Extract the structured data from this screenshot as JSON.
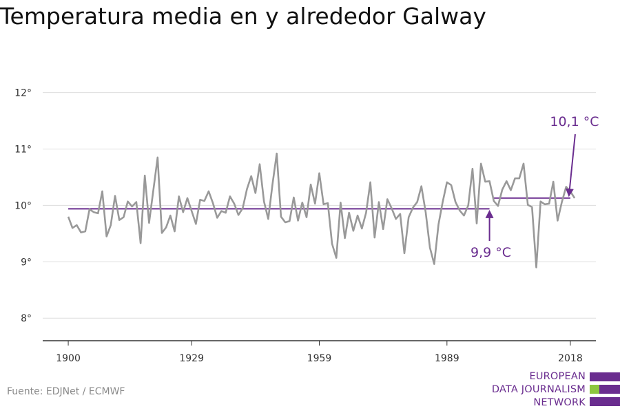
{
  "title": "Temperatura media en y alrededor Galway",
  "source": "Fuente: EDJNet / ECMWF",
  "logo": {
    "lines": [
      "EUROPEAN",
      "DATA JOURNALISM",
      "NETWORK"
    ]
  },
  "colors": {
    "series": "#999999",
    "average": "#6a2d8f",
    "grid": "#dddddd",
    "axis": "#333333",
    "logo_purple": "#6a2d8f",
    "logo_green": "#8dc63f"
  },
  "chart_data": {
    "type": "line",
    "title": "Temperatura media en y alrededor Galway",
    "xlabel": "",
    "ylabel": "",
    "xlim": [
      1894,
      2024
    ],
    "ylim": [
      7.6,
      12.3
    ],
    "x_ticks": [
      1900,
      1929,
      1959,
      1989,
      2018
    ],
    "x_tick_labels": [
      "1900",
      "1929",
      "1959",
      "1989",
      "2018"
    ],
    "y_ticks": [
      8,
      9,
      10,
      11,
      12
    ],
    "y_tick_labels": [
      "8°",
      "9°",
      "10°",
      "11°",
      "12°"
    ],
    "grid": "horizontal",
    "series": [
      {
        "x": [
          1900,
          1901,
          1902,
          1903,
          1904,
          1905,
          1906,
          1907,
          1908,
          1909,
          1910,
          1911,
          1912,
          1913,
          1914,
          1915,
          1916,
          1917,
          1918,
          1919,
          1920,
          1921,
          1922,
          1923,
          1924,
          1925,
          1926,
          1927,
          1928,
          1929,
          1930,
          1931,
          1932,
          1933,
          1934,
          1935,
          1936,
          1937,
          1938,
          1939,
          1940,
          1941,
          1942,
          1943,
          1944,
          1945,
          1946,
          1947,
          1948,
          1949,
          1950,
          1951,
          1952,
          1953,
          1954,
          1955,
          1956,
          1957,
          1958,
          1959,
          1960,
          1961,
          1962,
          1963,
          1964,
          1965,
          1966,
          1967,
          1968,
          1969,
          1970,
          1971,
          1972,
          1973,
          1974,
          1975,
          1976,
          1977,
          1978,
          1979,
          1980,
          1981,
          1982,
          1983,
          1984,
          1985,
          1986,
          1987,
          1988,
          1989,
          1990,
          1991,
          1992,
          1993,
          1994,
          1995,
          1996,
          1997,
          1998,
          1999,
          2000,
          2001,
          2002,
          2003,
          2004,
          2005,
          2006,
          2007,
          2008,
          2009,
          2010,
          2011,
          2012,
          2013,
          2014,
          2015,
          2016,
          2017,
          2018,
          2019
        ],
        "values": [
          9.8,
          9.6,
          9.65,
          9.52,
          9.54,
          9.93,
          9.88,
          9.86,
          10.25,
          9.45,
          9.65,
          10.17,
          9.74,
          9.79,
          10.07,
          9.98,
          10.06,
          9.33,
          10.53,
          9.69,
          10.27,
          10.85,
          9.51,
          9.61,
          9.82,
          9.54,
          10.16,
          9.88,
          10.13,
          9.9,
          9.67,
          10.1,
          10.08,
          10.25,
          10.04,
          9.78,
          9.9,
          9.87,
          10.16,
          10.03,
          9.83,
          9.95,
          10.29,
          10.52,
          10.22,
          10.73,
          10.07,
          9.76,
          10.38,
          10.92,
          9.8,
          9.7,
          9.72,
          10.14,
          9.73,
          10.05,
          9.79,
          10.37,
          10.03,
          10.57,
          10.02,
          10.04,
          9.32,
          9.07,
          10.05,
          9.42,
          9.87,
          9.55,
          9.82,
          9.59,
          9.87,
          10.41,
          9.43,
          10.06,
          9.58,
          10.11,
          9.95,
          9.76,
          9.85,
          9.15,
          9.79,
          9.96,
          10.06,
          10.34,
          9.88,
          9.25,
          8.96,
          9.66,
          10.06,
          10.41,
          10.36,
          10.06,
          9.91,
          9.82,
          10.0,
          10.65,
          9.68,
          10.74,
          10.42,
          10.43,
          10.08,
          9.99,
          10.28,
          10.43,
          10.27,
          10.48,
          10.48,
          10.74,
          10.01,
          9.97,
          8.9,
          10.07,
          10.02,
          10.03,
          10.42,
          9.73,
          10.06,
          10.33,
          10.25,
          10.13
        ]
      }
    ],
    "reference_lines": [
      {
        "x_start": 1900,
        "x_end": 1999,
        "value": 9.94,
        "label": "9,9 °C"
      },
      {
        "x_start": 2000,
        "x_end": 2018,
        "value": 10.13,
        "label": "10,1 °C"
      }
    ]
  }
}
